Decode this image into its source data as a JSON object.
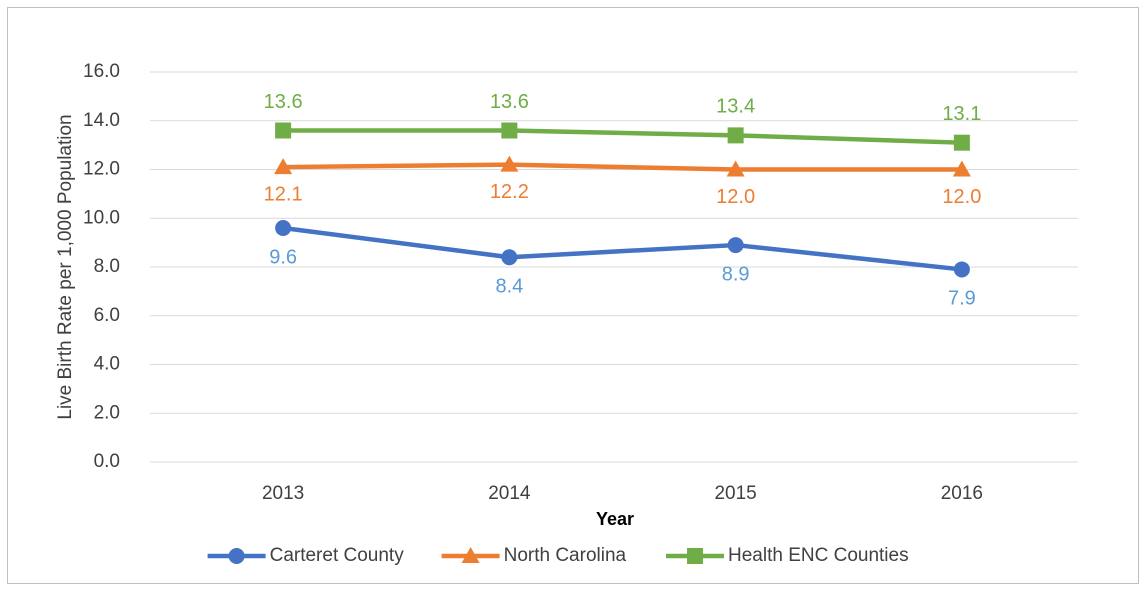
{
  "chart_data": {
    "type": "line",
    "y_label": "Live Birth Rate per 1,000 Population",
    "x_label": "Year",
    "categories": [
      "2013",
      "2014",
      "2015",
      "2016"
    ],
    "series": [
      {
        "name": "Carteret County",
        "color": "#4472c4",
        "label_color": "#5b9bd5",
        "marker": "circle",
        "values": [
          9.6,
          8.4,
          8.9,
          7.9
        ],
        "value_labels": [
          "9.6",
          "8.4",
          "8.9",
          "7.9"
        ]
      },
      {
        "name": "North Carolina",
        "color": "#ed7d31",
        "label_color": "#ed7d31",
        "marker": "triangle",
        "values": [
          12.1,
          12.2,
          12.0,
          12.0
        ],
        "value_labels": [
          "12.1",
          "12.2",
          "12.0",
          "12.0"
        ]
      },
      {
        "name": "Health ENC Counties",
        "color": "#70ad47",
        "label_color": "#70ad47",
        "marker": "square",
        "values": [
          13.6,
          13.6,
          13.4,
          13.1
        ],
        "value_labels": [
          "13.6",
          "13.6",
          "13.4",
          "13.1"
        ]
      }
    ],
    "ylim": [
      0,
      16
    ],
    "yticks": [
      {
        "value": 0,
        "label": "0.0"
      },
      {
        "value": 2,
        "label": "2.0"
      },
      {
        "value": 4,
        "label": "4.0"
      },
      {
        "value": 6,
        "label": "6.0"
      },
      {
        "value": 8,
        "label": "8.0"
      },
      {
        "value": 10,
        "label": "10.0"
      },
      {
        "value": 12,
        "label": "12.0"
      },
      {
        "value": 14,
        "label": "14.0"
      },
      {
        "value": 16,
        "label": "16.0"
      }
    ],
    "grid": true,
    "legend": "bottom"
  }
}
